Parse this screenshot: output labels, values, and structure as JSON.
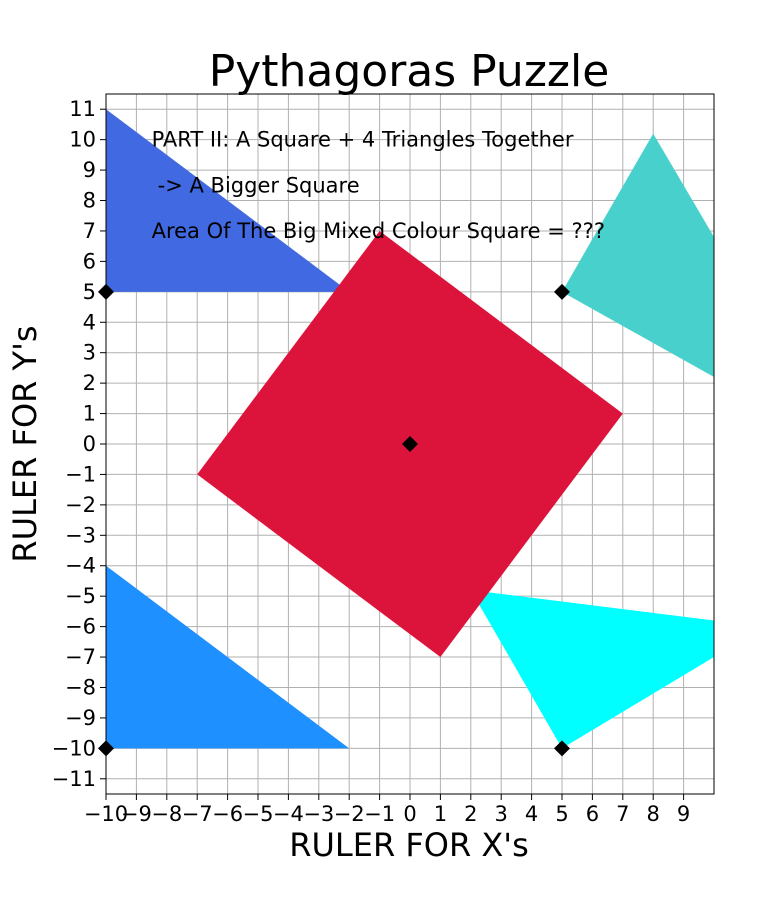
{
  "chart_data": {
    "type": "scatter",
    "title": "Pythagoras Puzzle",
    "xlabel": "RULER FOR X's",
    "ylabel": "RULER FOR Y's",
    "xlim": [
      -10,
      10
    ],
    "ylim": [
      -11.5,
      11.5
    ],
    "grid": true,
    "x_ticks": [
      -10,
      -9,
      -8,
      -7,
      -6,
      -5,
      -4,
      -3,
      -2,
      -1,
      0,
      1,
      2,
      3,
      4,
      5,
      6,
      7,
      8,
      9
    ],
    "y_ticks": [
      -11,
      -10,
      -9,
      -8,
      -7,
      -6,
      -5,
      -4,
      -3,
      -2,
      -1,
      0,
      1,
      2,
      3,
      4,
      5,
      6,
      7,
      8,
      9,
      10,
      11
    ],
    "annotations": [
      {
        "text": "PART II: A Square + 4 Triangles Together",
        "x": -8.5,
        "y": 10
      },
      {
        "text": "-> A Bigger Square",
        "x": -8.3,
        "y": 8.5
      },
      {
        "text": "Area Of The Big Mixed Colour Square = ???",
        "x": -8.5,
        "y": 7
      }
    ],
    "polygons": [
      {
        "id": "top-left-triangle",
        "color": "#4169e1",
        "points": [
          [
            -10,
            11
          ],
          [
            -10,
            5
          ],
          [
            -2,
            5
          ]
        ]
      },
      {
        "id": "top-right-triangle",
        "color": "#48d1cc",
        "points": [
          [
            5,
            5
          ],
          [
            8,
            10.2
          ],
          [
            10,
            6.8
          ],
          [
            10,
            2.2
          ]
        ]
      },
      {
        "id": "bottom-left-triangle",
        "color": "#1e90ff",
        "points": [
          [
            -10,
            -4
          ],
          [
            -10,
            -10
          ],
          [
            -2,
            -10
          ]
        ]
      },
      {
        "id": "bottom-right-triangle",
        "color": "#00ffff",
        "points": [
          [
            2,
            -4.8
          ],
          [
            5,
            -10
          ],
          [
            10,
            -7
          ],
          [
            10,
            -5.8
          ]
        ]
      },
      {
        "id": "center-square",
        "color": "#dc143c",
        "points": [
          [
            -1,
            7
          ],
          [
            7,
            1
          ],
          [
            1,
            -7
          ],
          [
            -7,
            -1
          ]
        ]
      }
    ],
    "points": [
      {
        "x": -10,
        "y": 5
      },
      {
        "x": 5,
        "y": 5
      },
      {
        "x": 0,
        "y": 0
      },
      {
        "x": -10,
        "y": -10
      },
      {
        "x": 5,
        "y": -10
      }
    ],
    "marker_color": "#000000"
  }
}
